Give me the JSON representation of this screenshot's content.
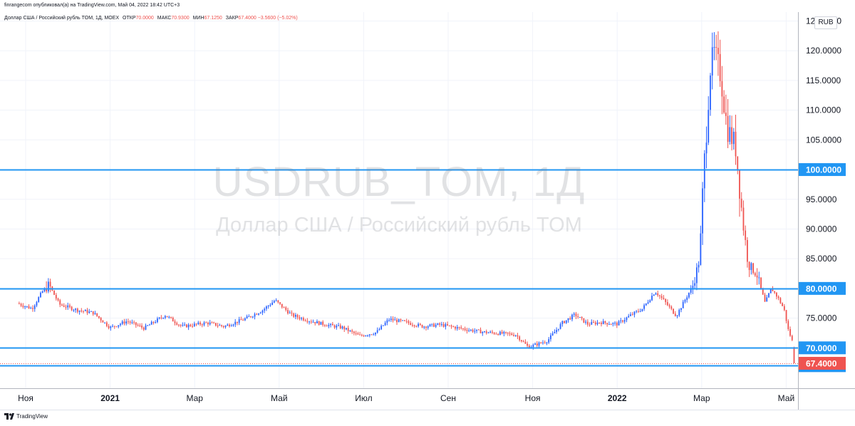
{
  "header": {
    "publisher": "finrangecom опубликовал(а) на TradingView.com, Май 04, 2022 18:42 UTC+3",
    "symbol": "Доллар США / Российский рубль TOM, 1Д, MOEX",
    "ohlc": [
      {
        "label": "ОТКР",
        "value": "70.0000"
      },
      {
        "label": "МАКС",
        "value": "70.9300"
      },
      {
        "label": "МИН",
        "value": "67.1250"
      },
      {
        "label": "ЗАКР",
        "value": "67.4000"
      },
      {
        "label": "",
        "value": "−3.5600 (−5.02%)"
      }
    ]
  },
  "currency_button": "RUB",
  "watermark": {
    "symbol": "USDRUB_TOM, 1Д",
    "description": "Доллар США / Российский рубль TOM"
  },
  "footer": {
    "brand": "TradingView"
  },
  "colors": {
    "up": "#2962ff",
    "down": "#ef5350",
    "hline": "#2196f3",
    "last_price_bg": "#ef5350",
    "level_bg": "#2196f3",
    "grid": "#f0f3fa"
  },
  "chart_data": {
    "type": "candlestick",
    "title": "USDRUB_TOM, 1Д",
    "ylim": [
      63.8,
      126.5
    ],
    "y_ticks": [
      "125.0000",
      "120.0000",
      "115.0000",
      "110.0000",
      "105.0000",
      "100.0000",
      "95.0000",
      "90.0000",
      "85.0000",
      "80.0000",
      "75.0000",
      "70.0000",
      "67.0000"
    ],
    "x_labels": [
      {
        "label": "Ноя",
        "month": 0
      },
      {
        "label": "2021",
        "month": 2
      },
      {
        "label": "Мар",
        "month": 4
      },
      {
        "label": "Май",
        "month": 6
      },
      {
        "label": "Июл",
        "month": 8
      },
      {
        "label": "Сен",
        "month": 10
      },
      {
        "label": "Ноя",
        "month": 12
      },
      {
        "label": "2022",
        "month": 14
      },
      {
        "label": "Мар",
        "month": 16
      },
      {
        "label": "Май",
        "month": 18
      }
    ],
    "horizontal_levels": [
      "100.0000",
      "80.0000",
      "70.0000",
      "67.0000"
    ],
    "last_price": "67.4000",
    "price_path": [
      [
        -0.2,
        77.5
      ],
      [
        0.15,
        76.6
      ],
      [
        0.4,
        79.5
      ],
      [
        0.55,
        80.6
      ],
      [
        0.8,
        77.3
      ],
      [
        1.2,
        76.4
      ],
      [
        1.6,
        75.9
      ],
      [
        2.0,
        73.4
      ],
      [
        2.4,
        74.5
      ],
      [
        2.8,
        73.3
      ],
      [
        3.3,
        75.5
      ],
      [
        3.7,
        73.6
      ],
      [
        4.3,
        74.2
      ],
      [
        4.7,
        73.6
      ],
      [
        5.2,
        74.9
      ],
      [
        5.6,
        76.3
      ],
      [
        5.9,
        78.0
      ],
      [
        6.3,
        75.5
      ],
      [
        6.7,
        74.6
      ],
      [
        7.1,
        73.9
      ],
      [
        7.5,
        73.4
      ],
      [
        7.9,
        72.0
      ],
      [
        8.3,
        72.6
      ],
      [
        8.6,
        74.8
      ],
      [
        9.0,
        74.3
      ],
      [
        9.4,
        73.6
      ],
      [
        9.8,
        73.9
      ],
      [
        10.2,
        73.4
      ],
      [
        10.5,
        73.0
      ],
      [
        10.9,
        72.6
      ],
      [
        11.3,
        72.4
      ],
      [
        11.6,
        72.2
      ],
      [
        11.9,
        70.1
      ],
      [
        12.1,
        70.6
      ],
      [
        12.35,
        71.2
      ],
      [
        12.7,
        74.2
      ],
      [
        13.0,
        75.6
      ],
      [
        13.3,
        74.0
      ],
      [
        13.6,
        74.3
      ],
      [
        14.0,
        74.0
      ],
      [
        14.3,
        75.4
      ],
      [
        14.6,
        76.6
      ],
      [
        14.9,
        79.5
      ],
      [
        15.1,
        78.0
      ],
      [
        15.4,
        75.4
      ],
      [
        15.6,
        78.0
      ],
      [
        15.8,
        80.6
      ],
      [
        15.95,
        85.0
      ],
      [
        16.05,
        100.0
      ],
      [
        16.1,
        105.0
      ],
      [
        16.2,
        117.0
      ],
      [
        16.3,
        119.5
      ],
      [
        16.45,
        116.0
      ],
      [
        16.6,
        107.0
      ],
      [
        16.8,
        104.0
      ],
      [
        16.95,
        93.0
      ],
      [
        17.1,
        84.0
      ],
      [
        17.3,
        82.5
      ],
      [
        17.5,
        77.5
      ],
      [
        17.65,
        80.0
      ],
      [
        17.8,
        78.5
      ],
      [
        17.95,
        76.5
      ],
      [
        18.05,
        73.0
      ],
      [
        18.15,
        71.0
      ],
      [
        18.2,
        67.4
      ]
    ]
  }
}
